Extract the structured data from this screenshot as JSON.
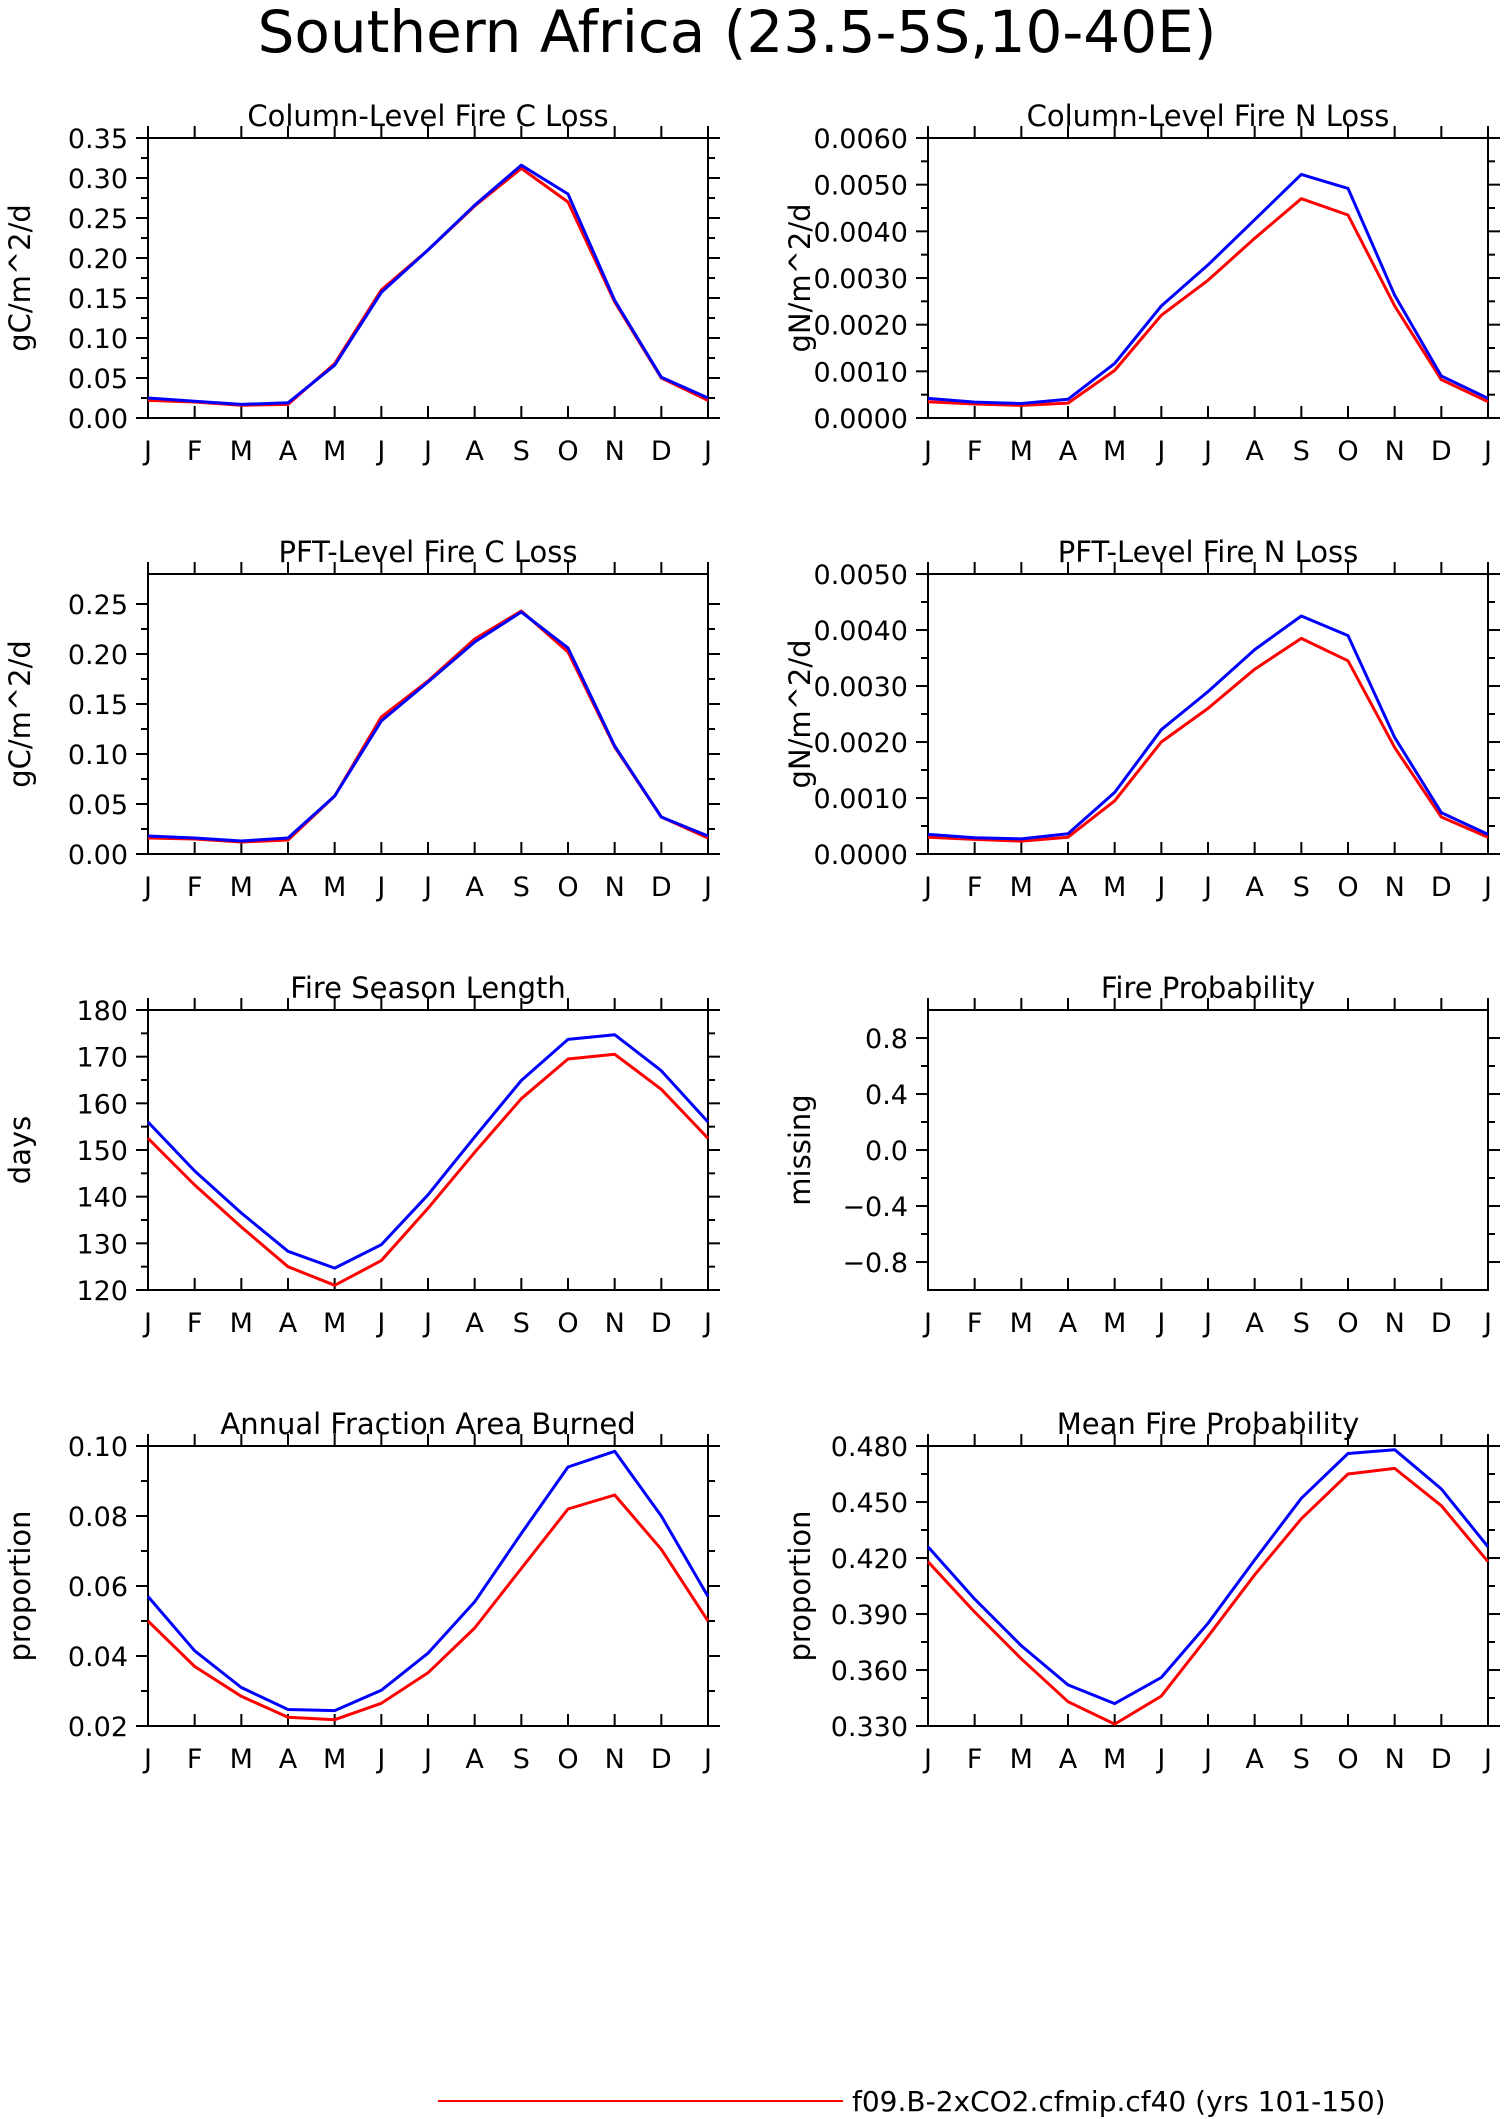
{
  "title": "Southern Africa (23.5-5S,10-40E)",
  "legend": [
    {
      "label": "f09.B-2xCO2.cfmip.cf40 (yrs 101-150)",
      "color": "#ff0000"
    }
  ],
  "colors": {
    "series_a": "#ff0000",
    "series_b": "#0000ff"
  },
  "chart_data": [
    {
      "type": "line",
      "title": "Column-Level Fire C Loss",
      "ylabel": "gC/m^2/d",
      "x": [
        "J",
        "F",
        "M",
        "A",
        "M",
        "J",
        "J",
        "A",
        "S",
        "O",
        "N",
        "D",
        "J"
      ],
      "ylim": [
        0,
        0.35
      ],
      "yticks": [
        0,
        0.05,
        0.1,
        0.15,
        0.2,
        0.25,
        0.3,
        0.35
      ],
      "ytick_labels": [
        "0.00",
        "0.05",
        "0.10",
        "0.15",
        "0.20",
        "0.25",
        "0.30",
        "0.35"
      ],
      "series": [
        {
          "values": [
            0.022,
            0.02,
            0.016,
            0.017,
            0.068,
            0.16,
            0.21,
            0.265,
            0.312,
            0.27,
            0.145,
            0.05,
            0.022
          ]
        },
        {
          "values": [
            0.025,
            0.021,
            0.017,
            0.019,
            0.066,
            0.157,
            0.21,
            0.266,
            0.316,
            0.28,
            0.147,
            0.051,
            0.025
          ]
        }
      ]
    },
    {
      "type": "line",
      "title": "Column-Level Fire N Loss",
      "ylabel": "gN/m^2/d",
      "x": [
        "J",
        "F",
        "M",
        "A",
        "M",
        "J",
        "J",
        "A",
        "S",
        "O",
        "N",
        "D",
        "J"
      ],
      "ylim": [
        0,
        0.006
      ],
      "yticks": [
        0,
        0.001,
        0.002,
        0.003,
        0.004,
        0.005,
        0.006
      ],
      "ytick_labels": [
        "0.0000",
        "0.0010",
        "0.0020",
        "0.0030",
        "0.0040",
        "0.0050",
        "0.0060"
      ],
      "series": [
        {
          "values": [
            0.00035,
            0.0003,
            0.00027,
            0.00032,
            0.00102,
            0.0022,
            0.00295,
            0.00385,
            0.0047,
            0.00435,
            0.0024,
            0.00082,
            0.00035
          ]
        },
        {
          "values": [
            0.00042,
            0.00034,
            0.00031,
            0.0004,
            0.00117,
            0.0024,
            0.00328,
            0.00425,
            0.00522,
            0.00492,
            0.00263,
            0.0009,
            0.00042
          ]
        }
      ]
    },
    {
      "type": "line",
      "title": "PFT-Level Fire C Loss",
      "ylabel": "gC/m^2/d",
      "x": [
        "J",
        "F",
        "M",
        "A",
        "M",
        "J",
        "J",
        "A",
        "S",
        "O",
        "N",
        "D",
        "J"
      ],
      "ylim": [
        0,
        0.28
      ],
      "yticks": [
        0,
        0.05,
        0.1,
        0.15,
        0.2,
        0.25
      ],
      "ytick_labels": [
        "0.00",
        "0.05",
        "0.10",
        "0.15",
        "0.20",
        "0.25"
      ],
      "series": [
        {
          "values": [
            0.016,
            0.015,
            0.012,
            0.014,
            0.058,
            0.137,
            0.173,
            0.215,
            0.243,
            0.202,
            0.107,
            0.037,
            0.016
          ]
        },
        {
          "values": [
            0.018,
            0.016,
            0.013,
            0.016,
            0.058,
            0.133,
            0.172,
            0.212,
            0.242,
            0.206,
            0.108,
            0.037,
            0.018
          ]
        }
      ]
    },
    {
      "type": "line",
      "title": "PFT-Level Fire N Loss",
      "ylabel": "gN/m^2/d",
      "x": [
        "J",
        "F",
        "M",
        "A",
        "M",
        "J",
        "J",
        "A",
        "S",
        "O",
        "N",
        "D",
        "J"
      ],
      "ylim": [
        0,
        0.005
      ],
      "yticks": [
        0,
        0.001,
        0.002,
        0.003,
        0.004,
        0.005
      ],
      "ytick_labels": [
        "0.0000",
        "0.0010",
        "0.0020",
        "0.0030",
        "0.0040",
        "0.0050"
      ],
      "series": [
        {
          "values": [
            0.0003,
            0.00026,
            0.00023,
            0.0003,
            0.00095,
            0.002,
            0.0026,
            0.0033,
            0.00385,
            0.00345,
            0.0019,
            0.00066,
            0.0003
          ]
        },
        {
          "values": [
            0.00035,
            0.00029,
            0.00027,
            0.00036,
            0.0011,
            0.00222,
            0.0029,
            0.00365,
            0.00425,
            0.0039,
            0.00208,
            0.00074,
            0.00035
          ]
        }
      ]
    },
    {
      "type": "line",
      "title": "Fire Season Length",
      "ylabel": "days",
      "x": [
        "J",
        "F",
        "M",
        "A",
        "M",
        "J",
        "J",
        "A",
        "S",
        "O",
        "N",
        "D",
        "J"
      ],
      "ylim": [
        120,
        180
      ],
      "yticks": [
        120,
        130,
        140,
        150,
        160,
        170,
        180
      ],
      "ytick_labels": [
        "120",
        "130",
        "140",
        "150",
        "160",
        "170",
        "180"
      ],
      "series": [
        {
          "values": [
            152.5,
            142.5,
            133.5,
            125.0,
            121.0,
            126.3,
            137.5,
            149.5,
            161.0,
            169.5,
            170.5,
            163.0,
            152.5
          ]
        },
        {
          "values": [
            156.0,
            145.5,
            136.5,
            128.3,
            124.7,
            129.7,
            140.4,
            152.8,
            164.9,
            173.7,
            174.7,
            167.0,
            156.0
          ]
        }
      ]
    },
    {
      "type": "line",
      "title": "Fire Probability",
      "ylabel": "missing",
      "x": [
        "J",
        "F",
        "M",
        "A",
        "M",
        "J",
        "J",
        "A",
        "S",
        "O",
        "N",
        "D",
        "J"
      ],
      "ylim": [
        -1,
        1
      ],
      "yticks": [
        -0.8,
        -0.4,
        0.0,
        0.4,
        0.8
      ],
      "ytick_labels": [
        "−0.8",
        "−0.4",
        "0.0",
        "0.4",
        "0.8"
      ],
      "series": []
    },
    {
      "type": "line",
      "title": "Annual Fraction Area Burned",
      "ylabel": "proportion",
      "x": [
        "J",
        "F",
        "M",
        "A",
        "M",
        "J",
        "J",
        "A",
        "S",
        "O",
        "N",
        "D",
        "J"
      ],
      "ylim": [
        0.02,
        0.1
      ],
      "yticks": [
        0.02,
        0.04,
        0.06,
        0.08,
        0.1
      ],
      "ytick_labels": [
        "0.02",
        "0.04",
        "0.06",
        "0.08",
        "0.10"
      ],
      "series": [
        {
          "values": [
            0.05,
            0.037,
            0.0285,
            0.0225,
            0.0218,
            0.0265,
            0.0352,
            0.048,
            0.065,
            0.082,
            0.086,
            0.0705,
            0.05
          ]
        },
        {
          "values": [
            0.057,
            0.0415,
            0.031,
            0.0247,
            0.0244,
            0.0302,
            0.0408,
            0.0555,
            0.075,
            0.094,
            0.0985,
            0.08,
            0.057
          ]
        }
      ]
    },
    {
      "type": "line",
      "title": "Mean Fire Probability",
      "ylabel": "proportion",
      "x": [
        "J",
        "F",
        "M",
        "A",
        "M",
        "J",
        "J",
        "A",
        "S",
        "O",
        "N",
        "D",
        "J"
      ],
      "ylim": [
        0.33,
        0.48
      ],
      "yticks": [
        0.33,
        0.36,
        0.39,
        0.42,
        0.45,
        0.48
      ],
      "ytick_labels": [
        "0.330",
        "0.360",
        "0.390",
        "0.420",
        "0.450",
        "0.480"
      ],
      "series": [
        {
          "values": [
            0.418,
            0.391,
            0.366,
            0.343,
            0.331,
            0.346,
            0.378,
            0.411,
            0.441,
            0.465,
            0.468,
            0.448,
            0.418
          ]
        },
        {
          "values": [
            0.426,
            0.398,
            0.373,
            0.352,
            0.342,
            0.356,
            0.385,
            0.419,
            0.452,
            0.476,
            0.478,
            0.457,
            0.426
          ]
        }
      ]
    }
  ]
}
